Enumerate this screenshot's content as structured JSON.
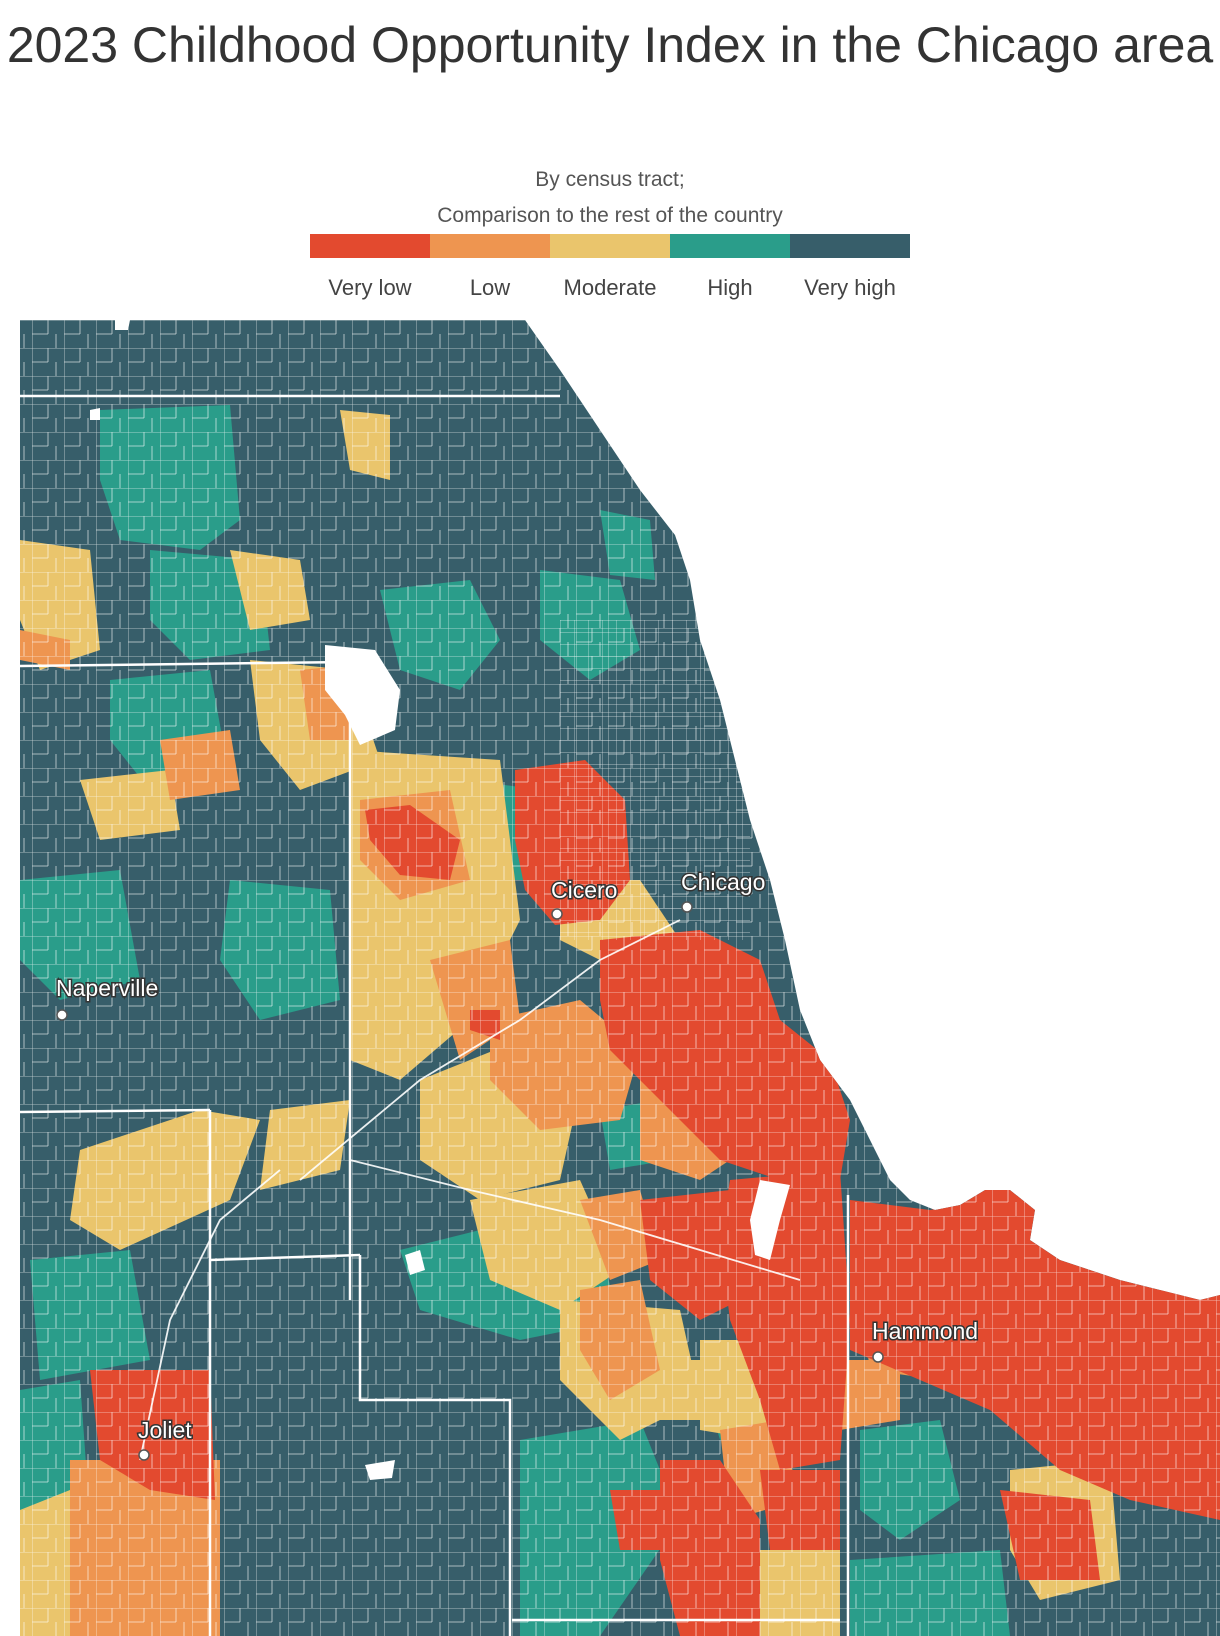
{
  "title": "2023 Childhood Opportunity Index in the Chicago area",
  "subtitle_line1": "By census tract;",
  "subtitle_line2": "Comparison to the rest of the country",
  "legend": [
    {
      "label": "Very low",
      "color": "#e34a2f"
    },
    {
      "label": "Low",
      "color": "#ee9550"
    },
    {
      "label": "Moderate",
      "color": "#eac56c"
    },
    {
      "label": "High",
      "color": "#2a9d8a"
    },
    {
      "label": "Very high",
      "color": "#375e6a"
    }
  ],
  "cities": [
    {
      "name": "Cicero"
    },
    {
      "name": "Chicago"
    },
    {
      "name": "Naperville"
    },
    {
      "name": "Hammond"
    },
    {
      "name": "Joliet"
    }
  ]
}
